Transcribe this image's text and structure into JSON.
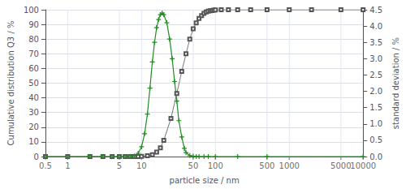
{
  "chart_data": {
    "type": "line",
    "log": "x",
    "grid": true,
    "xlabel": "particle size / nm",
    "ylabel": "Cumulative distribution Q3 / %",
    "y2label": "standard deviation / %",
    "xlim": [
      0.5,
      10000
    ],
    "xticks": [
      0.5,
      1,
      5,
      10,
      50,
      100,
      500,
      1000,
      5000,
      10000
    ],
    "ylim": [
      0,
      100
    ],
    "yticks": [
      0,
      10,
      20,
      30,
      40,
      50,
      60,
      70,
      80,
      90,
      100
    ],
    "y2lim": [
      0,
      4.5
    ],
    "y2ticks": [
      {
        "value": 0,
        "label": "0.0"
      },
      0.5,
      {
        "value": 1,
        "label": "1.0"
      },
      1.5,
      {
        "value": 2,
        "label": "2.0"
      },
      2.5,
      {
        "value": 3,
        "label": "3.0"
      },
      3.5,
      {
        "value": 4,
        "label": "4.0"
      },
      4.5
    ],
    "series": [
      {
        "color": "#555555",
        "marker": "square",
        "x": [
          0.5,
          1,
          2,
          3,
          4,
          5,
          6,
          7,
          8,
          9,
          10,
          12,
          14,
          16,
          18,
          20,
          25,
          30,
          35,
          40,
          45,
          50,
          55,
          60,
          65,
          70,
          75,
          80,
          85,
          90,
          95,
          100,
          120,
          150,
          200,
          300,
          500,
          1000,
          2000,
          5000,
          10000
        ],
        "values": [
          0,
          0,
          0,
          0,
          0,
          0,
          0,
          0,
          0,
          0,
          0.2,
          0.5,
          1.2,
          3,
          6,
          11,
          26,
          43,
          58,
          70,
          80,
          87,
          91,
          94,
          96,
          97.5,
          98.5,
          99,
          99.3,
          99.5,
          99.7,
          99.8,
          100,
          100,
          100,
          100,
          100,
          100,
          100,
          100,
          100
        ]
      },
      {
        "color": "#228B22",
        "marker": "plus",
        "axis": "y2",
        "x": [
          0.5,
          1,
          2,
          3,
          4,
          5,
          6,
          7,
          8,
          9,
          10,
          11,
          12,
          13,
          14,
          15,
          16,
          17,
          18,
          19,
          20,
          22,
          24,
          26,
          28,
          30,
          32,
          35,
          38,
          40,
          45,
          50,
          55,
          60,
          70,
          80,
          100,
          200,
          500,
          10000
        ],
        "values": [
          0,
          0,
          0,
          0,
          0,
          0,
          0,
          0,
          0.02,
          0.1,
          0.3,
          0.7,
          1.3,
          2.1,
          2.9,
          3.5,
          3.95,
          4.2,
          4.35,
          4.4,
          4.35,
          4.1,
          3.6,
          3.0,
          2.3,
          1.7,
          1.1,
          0.6,
          0.25,
          0.12,
          0.03,
          0.01,
          0.002,
          0,
          0,
          0,
          0,
          0,
          0,
          0
        ]
      }
    ]
  }
}
